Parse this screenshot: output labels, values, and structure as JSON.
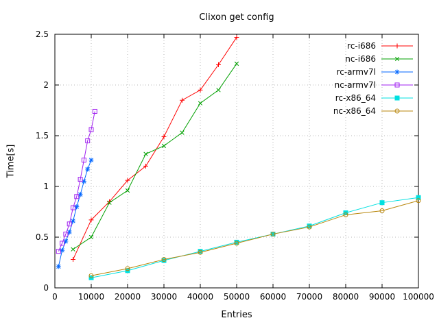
{
  "chart_data": {
    "type": "line",
    "title": "Clixon get config",
    "xlabel": "Entries",
    "ylabel": "Time[s]",
    "xlim": [
      0,
      100000
    ],
    "ylim": [
      0,
      2.5
    ],
    "x_ticks": [
      0,
      10000,
      20000,
      30000,
      40000,
      50000,
      60000,
      70000,
      80000,
      90000,
      100000
    ],
    "y_ticks": [
      0,
      0.5,
      1,
      1.5,
      2,
      2.5
    ],
    "grid": true,
    "legend_position": "top-right-inside",
    "background": "#ffffff",
    "grid_color": "#b8b8b8",
    "border_color": "#000000",
    "series": [
      {
        "name": "rc-i686",
        "color": "#ff0000",
        "marker": "plus",
        "points": [
          [
            5000,
            0.28
          ],
          [
            10000,
            0.67
          ],
          [
            15000,
            0.85
          ],
          [
            20000,
            1.06
          ],
          [
            25000,
            1.2
          ],
          [
            30000,
            1.49
          ],
          [
            35000,
            1.85
          ],
          [
            40000,
            1.95
          ],
          [
            45000,
            2.2
          ],
          [
            50000,
            2.47
          ]
        ]
      },
      {
        "name": "nc-i686",
        "color": "#00a000",
        "marker": "cross",
        "points": [
          [
            5000,
            0.38
          ],
          [
            10000,
            0.5
          ],
          [
            15000,
            0.84
          ],
          [
            20000,
            0.96
          ],
          [
            25000,
            1.32
          ],
          [
            30000,
            1.4
          ],
          [
            35000,
            1.53
          ],
          [
            40000,
            1.82
          ],
          [
            45000,
            1.95
          ],
          [
            50000,
            2.21
          ]
        ]
      },
      {
        "name": "rc-armv7l",
        "color": "#0066ff",
        "marker": "asterisk",
        "points": [
          [
            1000,
            0.21
          ],
          [
            2000,
            0.37
          ],
          [
            3000,
            0.46
          ],
          [
            4000,
            0.55
          ],
          [
            5000,
            0.66
          ],
          [
            6000,
            0.8
          ],
          [
            7000,
            0.92
          ],
          [
            8000,
            1.05
          ],
          [
            9000,
            1.17
          ],
          [
            10000,
            1.26
          ]
        ]
      },
      {
        "name": "nc-armv7l",
        "color": "#a020f0",
        "marker": "square-open",
        "points": [
          [
            1000,
            0.36
          ],
          [
            2000,
            0.44
          ],
          [
            3000,
            0.53
          ],
          [
            4000,
            0.63
          ],
          [
            5000,
            0.79
          ],
          [
            6000,
            0.9
          ],
          [
            7000,
            1.07
          ],
          [
            8000,
            1.26
          ],
          [
            9000,
            1.45
          ],
          [
            10000,
            1.56
          ],
          [
            11000,
            1.74
          ]
        ]
      },
      {
        "name": "rc-x86_64",
        "color": "#00e0e0",
        "marker": "square-filled",
        "points": [
          [
            10000,
            0.1
          ],
          [
            20000,
            0.17
          ],
          [
            30000,
            0.27
          ],
          [
            40000,
            0.36
          ],
          [
            50000,
            0.45
          ],
          [
            60000,
            0.53
          ],
          [
            70000,
            0.61
          ],
          [
            80000,
            0.74
          ],
          [
            90000,
            0.84
          ],
          [
            100000,
            0.89
          ]
        ]
      },
      {
        "name": "nc-x86_64",
        "color": "#b8860b",
        "marker": "circle-open",
        "points": [
          [
            10000,
            0.12
          ],
          [
            20000,
            0.19
          ],
          [
            30000,
            0.28
          ],
          [
            40000,
            0.35
          ],
          [
            50000,
            0.44
          ],
          [
            60000,
            0.53
          ],
          [
            70000,
            0.6
          ],
          [
            80000,
            0.72
          ],
          [
            90000,
            0.76
          ],
          [
            100000,
            0.86
          ]
        ]
      }
    ]
  }
}
